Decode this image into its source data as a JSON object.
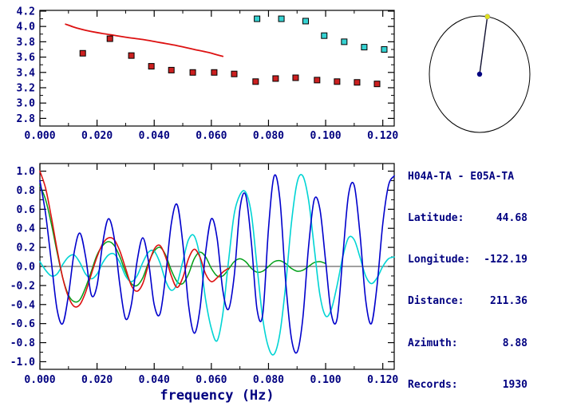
{
  "colors": {
    "axis": "#000000",
    "label": "#000080",
    "red": "#dd1111",
    "green": "#00a018",
    "blue": "#0000cc",
    "cyan": "#00d4d4",
    "square_edge": "#000000",
    "dial_line": "#101030",
    "dial_center_dot": "#000080",
    "dial_end_dot": "#e0e020"
  },
  "info_panel": {
    "title": "H04A-TA - E05A-TA",
    "rows": [
      {
        "label": "Latitude:",
        "value": "44.68"
      },
      {
        "label": "Longitude:",
        "value": "-122.19"
      },
      {
        "label": "Distance:",
        "value": "211.36"
      },
      {
        "label": "Azimuth:",
        "value": "8.88"
      },
      {
        "label": "Records:",
        "value": "1930"
      }
    ]
  },
  "chart_data": [
    {
      "id": "dispersion",
      "type": "scatter",
      "title": "",
      "xlabel": "",
      "ylabel": "",
      "xlim": [
        0,
        0.124
      ],
      "ylim": [
        2.7,
        4.21
      ],
      "x_ticks": {
        "values": [
          0,
          0.02,
          0.04,
          0.06,
          0.08,
          0.1,
          0.12
        ],
        "labels": [
          "0.000",
          "0.020",
          "0.040",
          "0.060",
          "0.080",
          "0.100",
          "0.120"
        ]
      },
      "y_ticks": {
        "values": [
          2.8,
          3.0,
          3.2,
          3.4,
          3.6,
          3.8,
          4.0,
          4.2
        ],
        "labels": [
          "2.8",
          "3.0",
          "3.2",
          "3.4",
          "3.6",
          "3.8",
          "4.0",
          "4.2"
        ]
      },
      "x_minor_step": 0.01,
      "y_minor_step": 0.1,
      "grid": false,
      "series": [
        {
          "name": "model-curve",
          "type": "line",
          "color": "#dd1111",
          "width": 1.8,
          "x": [
            0.009,
            0.012,
            0.016,
            0.02,
            0.025,
            0.03,
            0.036,
            0.042,
            0.048,
            0.054,
            0.059,
            0.062,
            0.064
          ],
          "y": [
            4.03,
            3.99,
            3.95,
            3.92,
            3.89,
            3.86,
            3.83,
            3.79,
            3.75,
            3.7,
            3.66,
            3.63,
            3.61
          ]
        },
        {
          "name": "measured-group-velocity",
          "type": "squares",
          "color": "#cc2020",
          "points": [
            [
              0.015,
              3.65
            ],
            [
              0.0245,
              3.84
            ],
            [
              0.032,
              3.62
            ],
            [
              0.039,
              3.48
            ],
            [
              0.046,
              3.43
            ],
            [
              0.0535,
              3.4
            ],
            [
              0.061,
              3.4
            ],
            [
              0.068,
              3.38
            ],
            [
              0.0755,
              3.28
            ],
            [
              0.0825,
              3.32
            ],
            [
              0.0895,
              3.33
            ],
            [
              0.097,
              3.3
            ],
            [
              0.104,
              3.28
            ],
            [
              0.111,
              3.27
            ],
            [
              0.118,
              3.25
            ]
          ]
        },
        {
          "name": "measured-phase-velocity",
          "type": "squares",
          "color": "#36d2d2",
          "points": [
            [
              0.076,
              4.1
            ],
            [
              0.0845,
              4.1
            ],
            [
              0.093,
              4.07
            ],
            [
              0.0995,
              3.88
            ],
            [
              0.1065,
              3.8
            ],
            [
              0.1135,
              3.73
            ],
            [
              0.1205,
              3.7
            ]
          ]
        }
      ]
    },
    {
      "id": "waveforms",
      "type": "line",
      "title": "",
      "xlabel": "frequency (Hz)",
      "ylabel": "",
      "xlim": [
        0,
        0.124
      ],
      "ylim": [
        -1.08,
        1.08
      ],
      "zero_line": true,
      "x_ticks": {
        "values": [
          0,
          0.02,
          0.04,
          0.06,
          0.08,
          0.1,
          0.12
        ],
        "labels": [
          "0.000",
          "0.020",
          "0.040",
          "0.060",
          "0.080",
          "0.100",
          "0.120"
        ]
      },
      "y_ticks": {
        "values": [
          -1.0,
          -0.8,
          -0.6,
          -0.4,
          -0.2,
          0.0,
          0.2,
          0.4,
          0.6,
          0.8,
          1.0
        ],
        "labels": [
          "-1.0",
          "-0.8",
          "-0.6",
          "-0.4",
          "-0.2",
          "0.0",
          "0.2",
          "0.4",
          "0.6",
          "0.8",
          "1.0"
        ]
      },
      "x_minor_step": 0.01,
      "y_minor_step": 0.1,
      "grid": false,
      "series": [
        {
          "name": "coherence-green",
          "type": "line",
          "color": "#00a018",
          "width": 1.5,
          "x0": 0,
          "dx": 0.002,
          "values": [
            0.85,
            0.7,
            0.45,
            0.15,
            -0.12,
            -0.3,
            -0.37,
            -0.35,
            -0.22,
            -0.05,
            0.12,
            0.22,
            0.26,
            0.22,
            0.1,
            -0.06,
            -0.18,
            -0.2,
            -0.12,
            0.04,
            0.16,
            0.2,
            0.12,
            -0.04,
            -0.16,
            -0.18,
            -0.08,
            0.08,
            0.15,
            0.1,
            -0.02,
            -0.1,
            -0.1,
            -0.03,
            0.05,
            0.08,
            0.05,
            -0.02,
            -0.06,
            -0.05,
            0.0,
            0.05,
            0.06,
            0.03,
            -0.02,
            -0.05,
            -0.04,
            0.0,
            0.04,
            0.05,
            0.03
          ]
        },
        {
          "name": "coherence-cyan",
          "type": "line",
          "color": "#00d4d4",
          "width": 1.6,
          "x0": 0,
          "dx": 0.002,
          "values": [
            0.05,
            -0.04,
            -0.1,
            -0.08,
            0.02,
            0.1,
            0.12,
            0.04,
            -0.08,
            -0.13,
            -0.08,
            0.04,
            0.12,
            0.13,
            0.04,
            -0.1,
            -0.16,
            -0.1,
            0.04,
            0.15,
            0.16,
            0.04,
            -0.15,
            -0.25,
            -0.18,
            0.05,
            0.28,
            0.32,
            0.1,
            -0.35,
            -0.65,
            -0.78,
            -0.5,
            0.05,
            0.55,
            0.75,
            0.78,
            0.55,
            0.0,
            -0.55,
            -0.85,
            -0.92,
            -0.7,
            -0.2,
            0.45,
            0.88,
            0.95,
            0.7,
            0.2,
            -0.3,
            -0.52,
            -0.45,
            -0.2,
            0.1,
            0.3,
            0.28,
            0.1,
            -0.1,
            -0.18,
            -0.12,
            0.0,
            0.08,
            0.1
          ]
        },
        {
          "name": "coherence-red",
          "type": "line",
          "color": "#dd1111",
          "width": 1.6,
          "x0": 0,
          "dx": 0.002,
          "values": [
            1.0,
            0.82,
            0.52,
            0.18,
            -0.12,
            -0.32,
            -0.42,
            -0.4,
            -0.27,
            -0.08,
            0.1,
            0.24,
            0.3,
            0.28,
            0.16,
            -0.02,
            -0.2,
            -0.26,
            -0.18,
            0.02,
            0.18,
            0.22,
            0.1,
            -0.1,
            -0.22,
            -0.12,
            0.08,
            0.18,
            0.1,
            -0.08,
            -0.16,
            -0.12,
            -0.06,
            -0.02
          ]
        },
        {
          "name": "coherence-blue",
          "type": "line",
          "color": "#0000cc",
          "width": 1.6,
          "x0": 0,
          "dx": 0.002,
          "values": [
            0.9,
            0.55,
            0.05,
            -0.45,
            -0.6,
            -0.3,
            0.15,
            0.35,
            0.1,
            -0.3,
            -0.2,
            0.25,
            0.5,
            0.3,
            -0.2,
            -0.55,
            -0.4,
            0.05,
            0.3,
            0.05,
            -0.4,
            -0.5,
            -0.1,
            0.45,
            0.65,
            0.25,
            -0.4,
            -0.7,
            -0.45,
            0.15,
            0.5,
            0.3,
            -0.25,
            -0.45,
            -0.1,
            0.6,
            0.75,
            0.25,
            -0.45,
            -0.5,
            0.4,
            0.95,
            0.7,
            -0.15,
            -0.75,
            -0.9,
            -0.55,
            0.2,
            0.7,
            0.6,
            0.05,
            -0.5,
            -0.55,
            0.1,
            0.75,
            0.85,
            0.35,
            -0.35,
            -0.6,
            -0.2,
            0.45,
            0.85,
            0.95
          ]
        }
      ]
    },
    {
      "id": "azimuth-dial",
      "type": "dial",
      "azimuth_deg": 8.88
    }
  ]
}
